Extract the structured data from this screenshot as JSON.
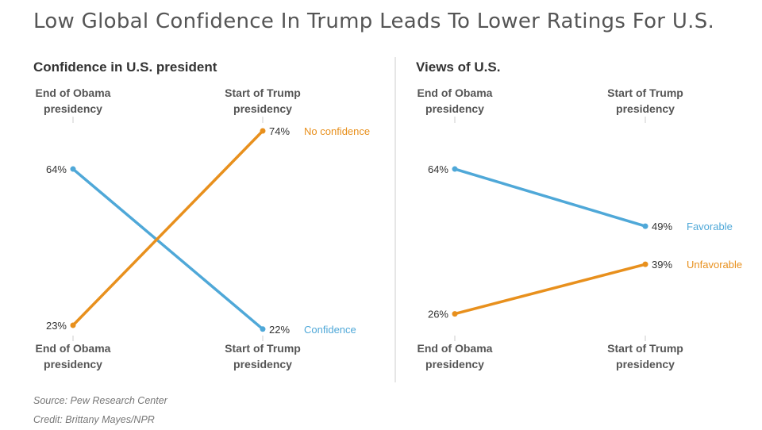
{
  "title": "Low Global Confidence In Trump Leads To Lower Ratings For U.S.",
  "footer": {
    "source": "Source: Pew Research Center",
    "credit": "Credit: Brittany Mayes/NPR"
  },
  "colors": {
    "blue": "#4fa8d8",
    "orange": "#e8901d"
  },
  "chart_data": [
    {
      "type": "line",
      "title": "Confidence in U.S. president",
      "categories": [
        "End of Obama presidency",
        "Start of Trump presidency"
      ],
      "ylim": [
        20,
        76
      ],
      "series": [
        {
          "name": "Confidence",
          "color": "blue",
          "values": [
            64,
            22
          ]
        },
        {
          "name": "No confidence",
          "color": "orange",
          "values": [
            23,
            74
          ]
        }
      ]
    },
    {
      "type": "line",
      "title": "Views of U.S.",
      "categories": [
        "End of Obama presidency",
        "Start of Trump presidency"
      ],
      "ylim": [
        20,
        76
      ],
      "series": [
        {
          "name": "Favorable",
          "color": "blue",
          "values": [
            64,
            49
          ]
        },
        {
          "name": "Unfavorable",
          "color": "orange",
          "values": [
            26,
            39
          ]
        }
      ]
    }
  ]
}
